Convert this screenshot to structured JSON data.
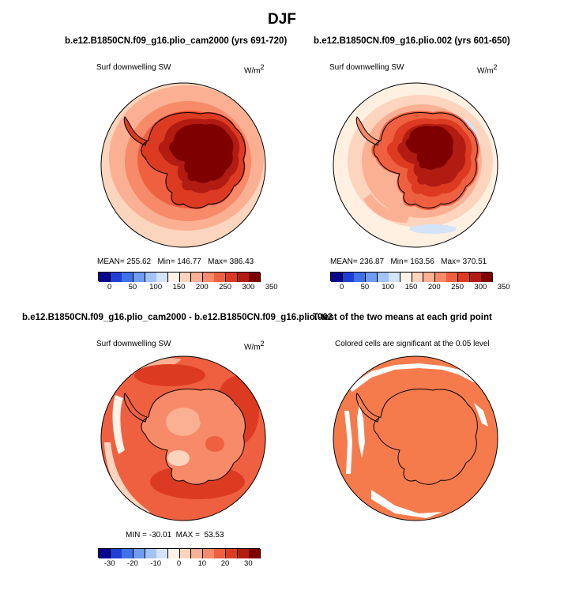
{
  "figure_title": "DJF",
  "panels": [
    {
      "title": "b.e12.B1850CN.f09_g16.plio_cam2000 (yrs 691-720)",
      "variable": "Surf downwelling SW",
      "units": "W/m",
      "units_exp": "2",
      "stats": {
        "mean_label": "MEAN=",
        "mean": "255.62",
        "min_label": "Min=",
        "min": "146.77",
        "max_label": "Max=",
        "max": "386.43"
      },
      "colorbar_ticks": [
        "0",
        "50",
        "100",
        "150",
        "200",
        "250",
        "300",
        "350"
      ]
    },
    {
      "title": "b.e12.B1850CN.f09_g16.plio.002 (yrs 601-650)",
      "variable": "Surf downwelling SW",
      "units": "W/m",
      "units_exp": "2",
      "stats": {
        "mean_label": "MEAN=",
        "mean": "236.87",
        "min_label": "Min=",
        "min": "163.56",
        "max_label": "Max=",
        "max": "370.51"
      },
      "colorbar_ticks": [
        "0",
        "50",
        "100",
        "150",
        "200",
        "250",
        "300",
        "350"
      ]
    },
    {
      "title": "b.e12.B1850CN.f09_g16.plio_cam2000 - b.e12.B1850CN.f09_g16.plio.002",
      "variable": "Surf downwelling SW",
      "units": "W/m",
      "units_exp": "2",
      "stats": {
        "min_label": "MIN =",
        "min": "-30.01",
        "max_label": "MAX =",
        "max": "53.53"
      },
      "colorbar_ticks": [
        "-30",
        "-20",
        "-10",
        "0",
        "10",
        "20",
        "30"
      ]
    },
    {
      "title": "T-test of the two means at each grid point",
      "subtitle": "Colored cells are significant at the 0.05 level"
    }
  ],
  "colors": {
    "abs_scale": [
      "#08088f",
      "#1f3fd6",
      "#3f72e6",
      "#6f9cf0",
      "#a3c3f5",
      "#d3e3f8",
      "#fff2e6",
      "#fdd4bd",
      "#fbb093",
      "#f78a68",
      "#ef6040",
      "#dc3b21",
      "#b21b12",
      "#7f0000"
    ],
    "diff_scale": [
      "#08088f",
      "#1f3fd6",
      "#3f72e6",
      "#6f9cf0",
      "#a3c3f5",
      "#d3e3f8",
      "#fff2e6",
      "#fdd4bd",
      "#fbb093",
      "#f78a68",
      "#ef6040",
      "#dc3b21",
      "#b21b12",
      "#7f0000"
    ],
    "significance": "#f57b4d"
  }
}
